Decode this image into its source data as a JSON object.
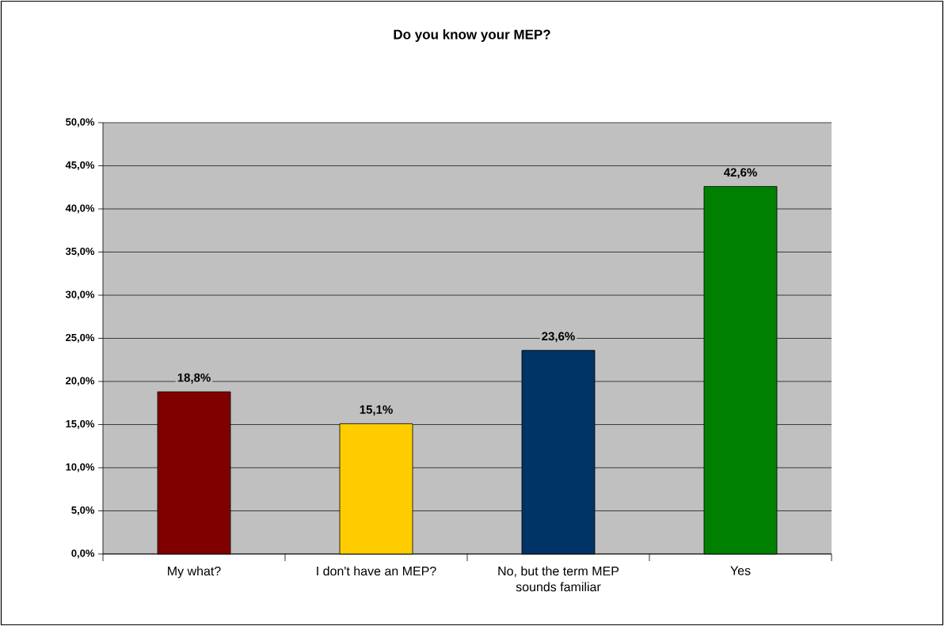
{
  "chart_data": {
    "type": "bar",
    "title": "Do you know your MEP?",
    "categories": [
      "My what?",
      "I don't have an MEP?",
      "No, but the term MEP sounds familiar",
      "Yes"
    ],
    "values": [
      18.8,
      15.1,
      23.6,
      42.6
    ],
    "colors": [
      "#800000",
      "#ffcc00",
      "#003366",
      "#008000"
    ],
    "value_labels": [
      "18,8%",
      "15,1%",
      "23,6%",
      "42,6%"
    ],
    "ylim": [
      0,
      50
    ],
    "yticks": [
      {
        "value": 0,
        "label": "0,0%"
      },
      {
        "value": 5,
        "label": "5,0%"
      },
      {
        "value": 10,
        "label": "10,0%"
      },
      {
        "value": 15,
        "label": "15,0%"
      },
      {
        "value": 20,
        "label": "20,0%"
      },
      {
        "value": 25,
        "label": "25,0%"
      },
      {
        "value": 30,
        "label": "30,0%"
      },
      {
        "value": 35,
        "label": "35,0%"
      },
      {
        "value": 40,
        "label": "40,0%"
      },
      {
        "value": 45,
        "label": "45,0%"
      },
      {
        "value": 50,
        "label": "50,0%"
      }
    ],
    "grid": "y"
  }
}
